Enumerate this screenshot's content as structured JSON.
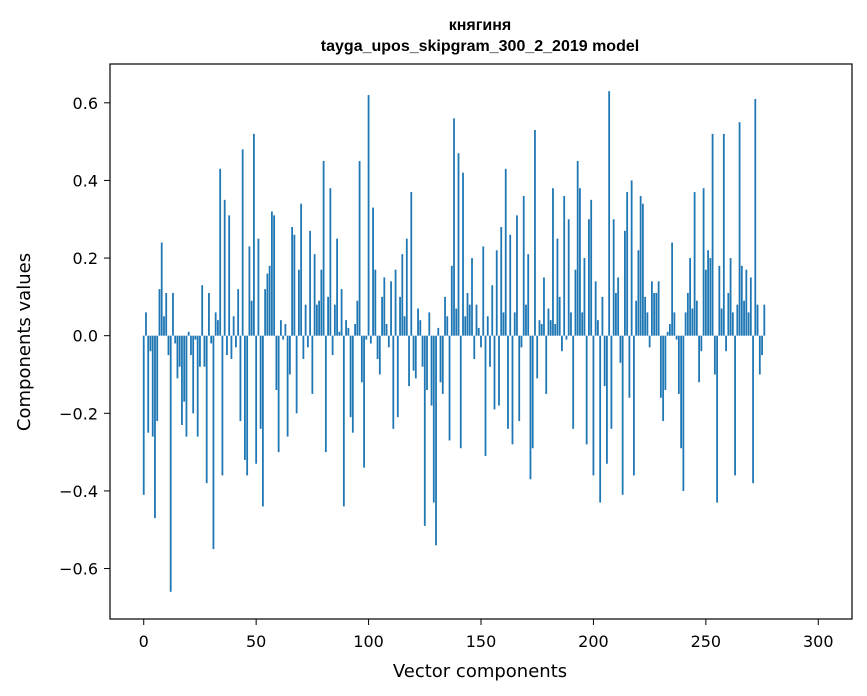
{
  "chart_data": {
    "type": "bar",
    "title": "княгиня",
    "subtitle": "tayga_upos_skipgram_300_2_2019 model",
    "xlabel": "Vector components",
    "ylabel": "Components values",
    "xlim": [
      -15,
      315
    ],
    "ylim": [
      -0.73,
      0.7
    ],
    "xticks": [
      0,
      50,
      100,
      150,
      200,
      250,
      300
    ],
    "yticks": [
      -0.6,
      -0.4,
      -0.2,
      0.0,
      0.2,
      0.4,
      0.6
    ],
    "ytick_labels": [
      "−0.6",
      "−0.4",
      "−0.2",
      "0.0",
      "0.2",
      "0.4",
      "0.6"
    ],
    "bar_color": "#1f77b4",
    "grid": false,
    "values": [
      -0.41,
      0.06,
      -0.25,
      -0.04,
      -0.26,
      -0.47,
      -0.22,
      0.12,
      0.24,
      0.05,
      0.11,
      -0.05,
      -0.66,
      0.11,
      -0.02,
      -0.11,
      -0.08,
      -0.23,
      -0.17,
      -0.26,
      0.01,
      -0.05,
      -0.2,
      -0.01,
      -0.26,
      -0.08,
      0.13,
      -0.08,
      -0.38,
      0.11,
      -0.02,
      -0.55,
      0.06,
      0.04,
      0.43,
      -0.36,
      0.35,
      -0.05,
      0.31,
      -0.06,
      0.05,
      -0.03,
      0.12,
      -0.22,
      0.48,
      -0.32,
      -0.36,
      0.23,
      0.09,
      0.52,
      -0.33,
      0.25,
      -0.24,
      -0.44,
      0.12,
      0.16,
      0.18,
      0.32,
      0.31,
      -0.14,
      -0.3,
      0.04,
      -0.01,
      0.03,
      -0.26,
      -0.1,
      0.28,
      0.26,
      -0.2,
      0.17,
      0.34,
      -0.06,
      0.08,
      -0.03,
      0.27,
      -0.15,
      0.21,
      0.08,
      0.09,
      0.17,
      0.45,
      -0.3,
      0.1,
      0.38,
      -0.05,
      0.08,
      0.25,
      0.01,
      0.12,
      -0.44,
      0.04,
      0.02,
      -0.21,
      -0.25,
      0.03,
      0.09,
      0.45,
      -0.12,
      -0.34,
      -0.01,
      0.62,
      -0.02,
      0.33,
      0.17,
      -0.06,
      -0.1,
      0.1,
      0.15,
      0.03,
      -0.03,
      0.14,
      -0.24,
      0.17,
      -0.21,
      0.1,
      0.21,
      0.05,
      0.25,
      -0.13,
      0.37,
      -0.09,
      -0.11,
      0.07,
      0.04,
      -0.08,
      -0.49,
      -0.14,
      0.06,
      -0.18,
      -0.43,
      -0.54,
      0.02,
      -0.12,
      -0.15,
      0.1,
      0.05,
      -0.27,
      0.18,
      0.56,
      0.07,
      0.47,
      -0.29,
      0.42,
      0.05,
      0.11,
      0.08,
      0.2,
      -0.06,
      0.08,
      0.02,
      -0.03,
      0.23,
      -0.31,
      0.05,
      -0.08,
      0.13,
      -0.19,
      0.22,
      -0.18,
      0.28,
      0.06,
      0.43,
      -0.24,
      0.26,
      -0.28,
      0.06,
      0.31,
      -0.22,
      -0.03,
      0.36,
      0.08,
      0.21,
      -0.37,
      -0.29,
      0.53,
      -0.11,
      0.04,
      0.03,
      0.15,
      -0.15,
      0.07,
      0.04,
      0.38,
      0.03,
      0.25,
      0.1,
      -0.04,
      0.36,
      -0.01,
      0.3,
      0.06,
      -0.24,
      0.17,
      0.45,
      0.38,
      0.06,
      0.2,
      -0.28,
      0.3,
      0.35,
      -0.36,
      0.14,
      0.04,
      -0.43,
      0.1,
      -0.13,
      -0.33,
      0.63,
      -0.24,
      0.3,
      0.11,
      0.15,
      -0.07,
      -0.41,
      0.27,
      0.37,
      -0.16,
      0.4,
      -0.36,
      0.09,
      0.22,
      0.36,
      0.34,
      0.1,
      0.06,
      -0.03,
      0.14,
      0.11,
      0.11,
      0.14,
      -0.16,
      -0.22,
      -0.14,
      0.01,
      0.03,
      0.24,
      0.06,
      -0.01,
      -0.15,
      -0.29,
      -0.4,
      0.06,
      0.11,
      0.2,
      0.07,
      0.37,
      0.09,
      -0.12,
      -0.04,
      0.38,
      0.17,
      0.22,
      0.2,
      0.52,
      -0.1,
      -0.43,
      0.18,
      0.07,
      0.52,
      -0.04,
      0.11,
      0.2,
      0.06,
      -0.36,
      0.08,
      0.55,
      0.18,
      0.09,
      0.17,
      0.06,
      0.15,
      -0.38,
      0.61,
      0.08,
      -0.1,
      -0.05,
      0.08
    ]
  }
}
